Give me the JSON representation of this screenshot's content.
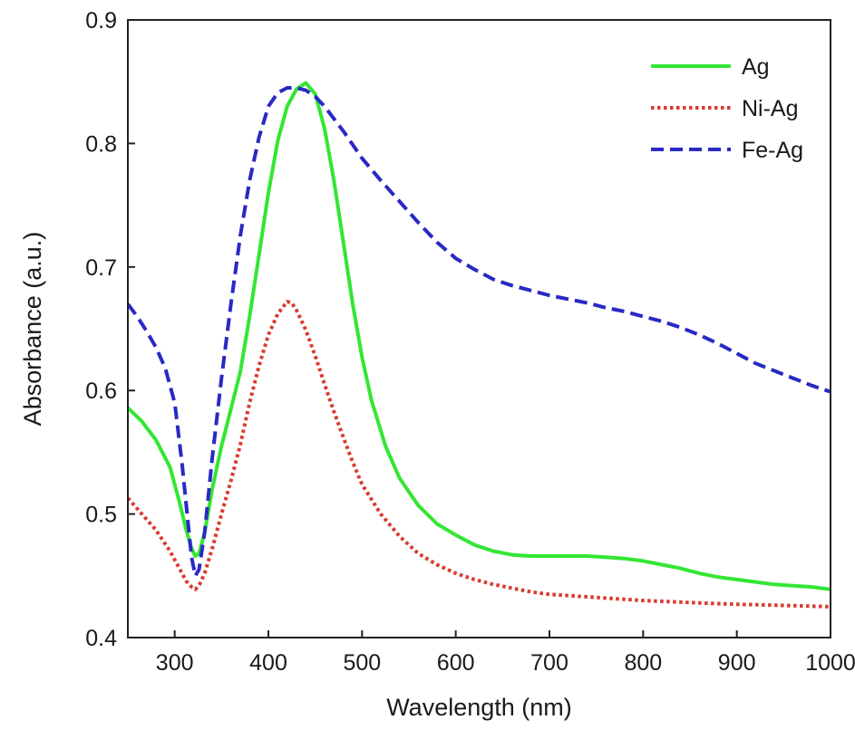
{
  "chart_data": {
    "type": "line",
    "title": "",
    "xlabel": "Wavelength (nm)",
    "ylabel": "Absorbance (a.u.)",
    "xlim": [
      250,
      1000
    ],
    "ylim": [
      0.4,
      0.9
    ],
    "xticks": [
      300,
      400,
      500,
      600,
      700,
      800,
      900,
      1000
    ],
    "xtick_labels": [
      "300",
      "400",
      "500",
      "600",
      "700",
      "800",
      "900",
      "1000"
    ],
    "yticks": [
      0.4,
      0.5,
      0.6,
      0.7,
      0.8,
      0.9
    ],
    "ytick_labels": [
      "0.4",
      "0.5",
      "0.6",
      "0.7",
      "0.8",
      "0.9"
    ],
    "grid": false,
    "legend_position": "top-right",
    "series": [
      {
        "name": "Ag",
        "color": "#33e633",
        "style": "solid",
        "points": [
          [
            250,
            0.586
          ],
          [
            265,
            0.575
          ],
          [
            280,
            0.56
          ],
          [
            295,
            0.538
          ],
          [
            305,
            0.51
          ],
          [
            312,
            0.488
          ],
          [
            318,
            0.472
          ],
          [
            322,
            0.466
          ],
          [
            326,
            0.468
          ],
          [
            332,
            0.485
          ],
          [
            340,
            0.52
          ],
          [
            350,
            0.555
          ],
          [
            360,
            0.585
          ],
          [
            370,
            0.615
          ],
          [
            380,
            0.66
          ],
          [
            390,
            0.71
          ],
          [
            400,
            0.76
          ],
          [
            410,
            0.802
          ],
          [
            420,
            0.83
          ],
          [
            430,
            0.844
          ],
          [
            440,
            0.849
          ],
          [
            450,
            0.84
          ],
          [
            460,
            0.812
          ],
          [
            470,
            0.77
          ],
          [
            480,
            0.72
          ],
          [
            490,
            0.67
          ],
          [
            500,
            0.627
          ],
          [
            510,
            0.592
          ],
          [
            525,
            0.555
          ],
          [
            540,
            0.529
          ],
          [
            560,
            0.507
          ],
          [
            580,
            0.492
          ],
          [
            600,
            0.483
          ],
          [
            620,
            0.475
          ],
          [
            640,
            0.47
          ],
          [
            660,
            0.467
          ],
          [
            680,
            0.466
          ],
          [
            700,
            0.466
          ],
          [
            720,
            0.466
          ],
          [
            740,
            0.466
          ],
          [
            760,
            0.465
          ],
          [
            780,
            0.464
          ],
          [
            800,
            0.462
          ],
          [
            820,
            0.459
          ],
          [
            840,
            0.456
          ],
          [
            860,
            0.452
          ],
          [
            880,
            0.449
          ],
          [
            900,
            0.447
          ],
          [
            920,
            0.445
          ],
          [
            940,
            0.443
          ],
          [
            960,
            0.442
          ],
          [
            980,
            0.441
          ],
          [
            1000,
            0.439
          ]
        ]
      },
      {
        "name": "Ni-Ag",
        "color": "#d93a2e",
        "style": "dotted",
        "points": [
          [
            250,
            0.513
          ],
          [
            265,
            0.5
          ],
          [
            280,
            0.487
          ],
          [
            295,
            0.47
          ],
          [
            305,
            0.456
          ],
          [
            312,
            0.446
          ],
          [
            318,
            0.441
          ],
          [
            322,
            0.439
          ],
          [
            326,
            0.442
          ],
          [
            332,
            0.452
          ],
          [
            340,
            0.472
          ],
          [
            350,
            0.5
          ],
          [
            360,
            0.527
          ],
          [
            370,
            0.556
          ],
          [
            380,
            0.59
          ],
          [
            390,
            0.62
          ],
          [
            400,
            0.645
          ],
          [
            410,
            0.662
          ],
          [
            420,
            0.672
          ],
          [
            425,
            0.671
          ],
          [
            430,
            0.665
          ],
          [
            440,
            0.649
          ],
          [
            450,
            0.628
          ],
          [
            460,
            0.605
          ],
          [
            470,
            0.583
          ],
          [
            480,
            0.562
          ],
          [
            490,
            0.542
          ],
          [
            500,
            0.524
          ],
          [
            520,
            0.5
          ],
          [
            540,
            0.482
          ],
          [
            560,
            0.468
          ],
          [
            580,
            0.459
          ],
          [
            600,
            0.452
          ],
          [
            620,
            0.447
          ],
          [
            640,
            0.443
          ],
          [
            660,
            0.44
          ],
          [
            680,
            0.437
          ],
          [
            700,
            0.435
          ],
          [
            720,
            0.434
          ],
          [
            740,
            0.433
          ],
          [
            760,
            0.432
          ],
          [
            780,
            0.431
          ],
          [
            800,
            0.43
          ],
          [
            830,
            0.429
          ],
          [
            860,
            0.428
          ],
          [
            900,
            0.427
          ],
          [
            950,
            0.426
          ],
          [
            1000,
            0.425
          ]
        ]
      },
      {
        "name": "Fe-Ag",
        "color": "#2929c4",
        "style": "dashed",
        "points": [
          [
            250,
            0.67
          ],
          [
            260,
            0.66
          ],
          [
            270,
            0.648
          ],
          [
            280,
            0.635
          ],
          [
            290,
            0.618
          ],
          [
            300,
            0.59
          ],
          [
            308,
            0.54
          ],
          [
            314,
            0.495
          ],
          [
            318,
            0.465
          ],
          [
            322,
            0.45
          ],
          [
            326,
            0.455
          ],
          [
            332,
            0.485
          ],
          [
            340,
            0.545
          ],
          [
            350,
            0.61
          ],
          [
            360,
            0.67
          ],
          [
            370,
            0.725
          ],
          [
            380,
            0.77
          ],
          [
            390,
            0.805
          ],
          [
            400,
            0.83
          ],
          [
            410,
            0.841
          ],
          [
            420,
            0.845
          ],
          [
            430,
            0.845
          ],
          [
            440,
            0.843
          ],
          [
            450,
            0.838
          ],
          [
            460,
            0.83
          ],
          [
            470,
            0.82
          ],
          [
            480,
            0.81
          ],
          [
            490,
            0.799
          ],
          [
            500,
            0.788
          ],
          [
            520,
            0.77
          ],
          [
            540,
            0.753
          ],
          [
            560,
            0.736
          ],
          [
            580,
            0.72
          ],
          [
            600,
            0.707
          ],
          [
            620,
            0.698
          ],
          [
            640,
            0.69
          ],
          [
            660,
            0.685
          ],
          [
            680,
            0.681
          ],
          [
            700,
            0.677
          ],
          [
            720,
            0.674
          ],
          [
            740,
            0.671
          ],
          [
            760,
            0.667
          ],
          [
            780,
            0.664
          ],
          [
            800,
            0.66
          ],
          [
            820,
            0.656
          ],
          [
            840,
            0.651
          ],
          [
            860,
            0.645
          ],
          [
            880,
            0.638
          ],
          [
            900,
            0.63
          ],
          [
            920,
            0.622
          ],
          [
            940,
            0.616
          ],
          [
            960,
            0.61
          ],
          [
            980,
            0.604
          ],
          [
            1000,
            0.599
          ]
        ]
      }
    ]
  }
}
